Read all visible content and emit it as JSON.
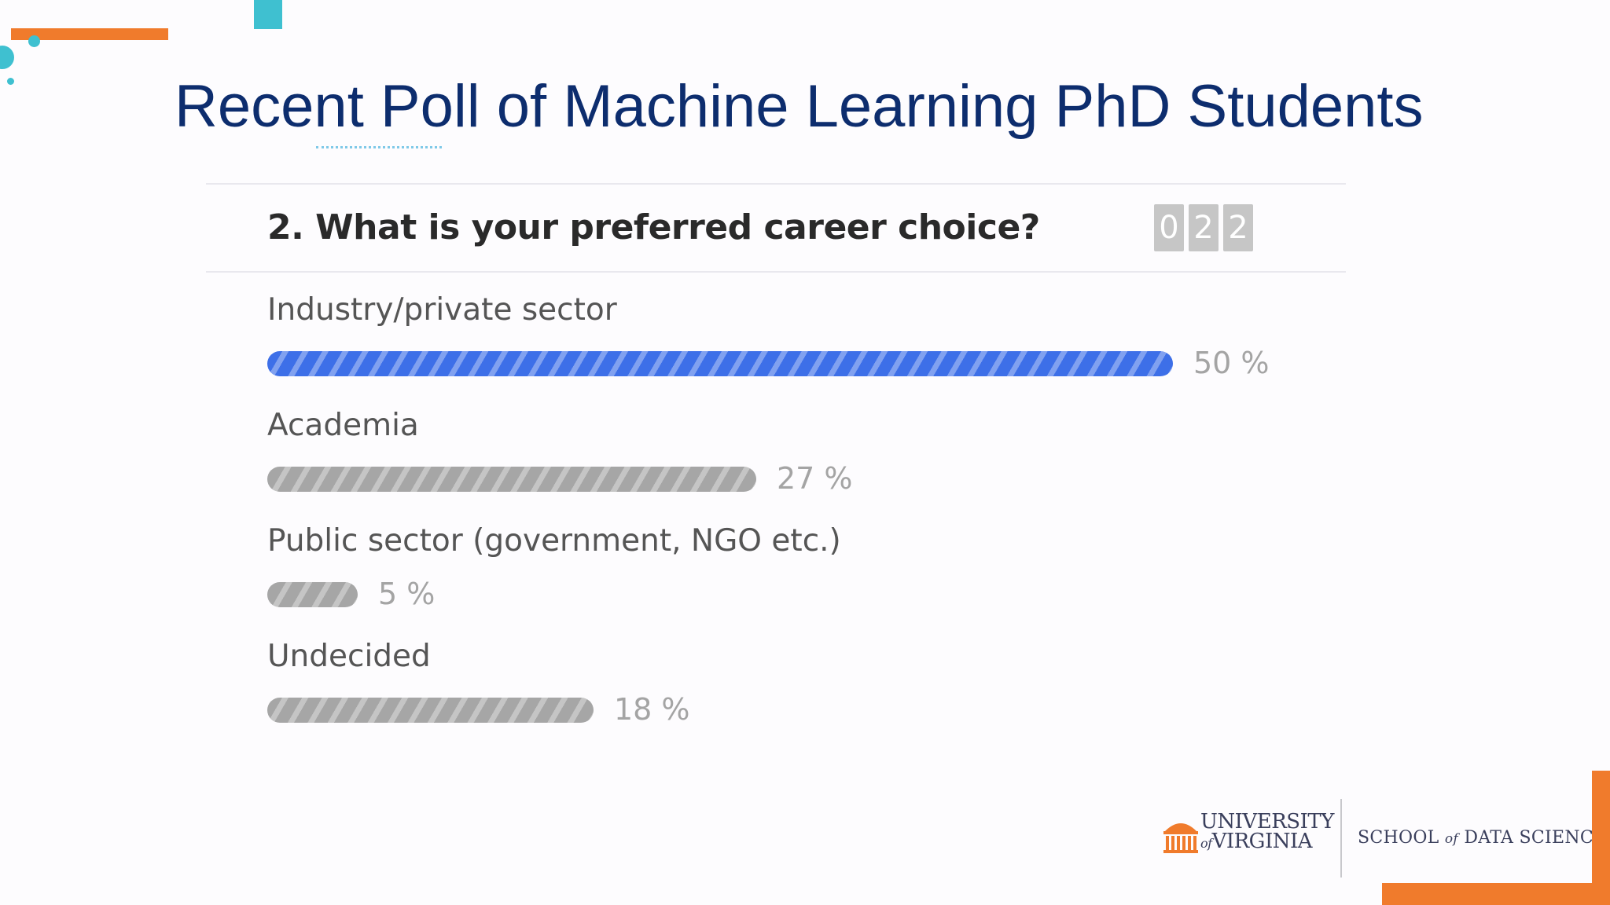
{
  "slide": {
    "title": "Recent Poll of Machine Learning PhD Students"
  },
  "poll": {
    "question": "2. What is your preferred career choice?",
    "response_counter": [
      "0",
      "2",
      "2"
    ]
  },
  "chart_data": {
    "type": "bar",
    "orientation": "horizontal",
    "categories": [
      "Industry/private sector",
      "Academia",
      "Public sector (government, NGO etc.)",
      "Undecided"
    ],
    "values": [
      50,
      27,
      5,
      18
    ],
    "value_labels": [
      "50 %",
      "27 %",
      "5 %",
      "18 %"
    ],
    "unit": "%",
    "xlim": [
      0,
      50
    ],
    "highlight_color": "#3d6fe8",
    "bar_color": "#a6a6a6"
  },
  "branding": {
    "university_name": "University of Virginia",
    "university_line1": "UNIVERSITY",
    "university_of": "of",
    "university_line2": "VIRGINIA",
    "school_prefix": "SCHOOL",
    "school_of": "of",
    "school_suffix": "DATA SCIENCE",
    "accent_orange": "#f07b2c",
    "accent_teal": "#3fc0d0",
    "title_color": "#0d2d6e"
  }
}
